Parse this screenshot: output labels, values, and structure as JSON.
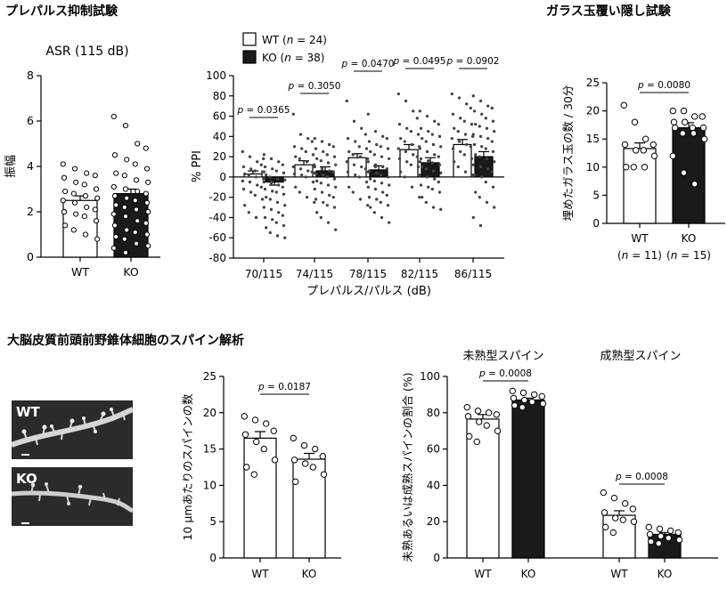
{
  "sections": {
    "prepulse": "プレパルス抑制試験",
    "marble": "ガラス玉覆い隠し試験",
    "spine": "大脳皮質前頭前野錐体細胞のスパイン解析"
  },
  "micrographs": {
    "wt_label": "WT",
    "ko_label": "KO"
  },
  "legend": {
    "wt": {
      "name": "WT",
      "n_prefix": "(",
      "n_var": "n",
      "n_value": " = 24)"
    },
    "ko": {
      "name": "KO",
      "n_prefix": "(",
      "n_var": "n",
      "n_value": " = 38)"
    }
  },
  "colors": {
    "wt_fill": "#ffffff",
    "ko_fill": "#1a1a1a",
    "axis": "#000000",
    "wt_marker": "open-circle",
    "ko_marker": "filled-dot"
  },
  "chart_data": [
    {
      "id": "asr",
      "type": "bar",
      "title": "ASR (115 dB)",
      "ylabel": "振幅",
      "xlabel": "",
      "ylim": [
        0,
        8
      ],
      "yticks": [
        0,
        2,
        4,
        6,
        8
      ],
      "categories": [
        "WT",
        "KO"
      ],
      "values": [
        2.5,
        2.8
      ],
      "sem": [
        0.2,
        0.2
      ],
      "points": [
        [
          4.1,
          3.9,
          3.7,
          3.6,
          3.5,
          3.3,
          3.2,
          3.0,
          2.9,
          2.8,
          2.7,
          2.6,
          2.5,
          2.4,
          2.2,
          2.1,
          2.0,
          1.9,
          1.8,
          1.6,
          1.4,
          1.2,
          1.0,
          0.8
        ],
        [
          6.2,
          5.8,
          5.0,
          4.8,
          4.5,
          4.3,
          4.1,
          3.9,
          3.7,
          3.6,
          3.4,
          3.3,
          3.1,
          3.0,
          2.9,
          2.8,
          2.7,
          2.6,
          2.5,
          2.4,
          2.3,
          2.2,
          2.1,
          2.0,
          1.9,
          1.8,
          1.6,
          1.5,
          1.4,
          1.2,
          1.1,
          1.0,
          0.9,
          0.8,
          0.6,
          0.5,
          0.4,
          0.2
        ]
      ]
    },
    {
      "id": "ppi",
      "type": "bar",
      "title": "",
      "ylabel": "% PPI",
      "xlabel": "プレパルス/パルス (dB)",
      "ylim": [
        -80,
        100
      ],
      "yticks": [
        -80,
        -60,
        -40,
        -20,
        0,
        20,
        40,
        60,
        80,
        100
      ],
      "categories": [
        "70/115",
        "74/115",
        "78/115",
        "82/115",
        "86/115"
      ],
      "series": [
        {
          "name": "WT",
          "values": [
            3,
            12,
            19,
            27,
            32
          ],
          "sem": [
            3,
            4,
            4,
            5,
            5
          ]
        },
        {
          "name": "KO",
          "values": [
            -5,
            6,
            7,
            14,
            20
          ],
          "sem": [
            3,
            4,
            4,
            5,
            5
          ]
        }
      ],
      "p_values": [
        "p = 0.0365",
        "p = 0.3050",
        "p = 0.0470",
        "p = 0.0495",
        "p = 0.0902"
      ],
      "points": [
        {
          "wt": [
            25,
            20,
            15,
            12,
            10,
            8,
            6,
            5,
            3,
            2,
            0,
            -2,
            -4,
            -5,
            -8,
            -10,
            -12,
            -15,
            -18,
            -22,
            -28,
            -35,
            -40,
            18
          ],
          "ko": [
            22,
            18,
            15,
            12,
            10,
            8,
            6,
            4,
            2,
            0,
            -2,
            -3,
            -5,
            -6,
            -8,
            -10,
            -12,
            -14,
            -15,
            -17,
            -20,
            -22,
            -25,
            -28,
            -30,
            -32,
            -35,
            -38,
            -40,
            -42,
            -45,
            -48,
            -50,
            -55,
            -58,
            -60,
            5,
            -5
          ]
        },
        {
          "wt": [
            62,
            42,
            38,
            35,
            30,
            28,
            25,
            22,
            20,
            18,
            15,
            12,
            10,
            8,
            6,
            5,
            3,
            2,
            0,
            -5,
            -10,
            -15,
            -20,
            -25
          ],
          "ko": [
            38,
            35,
            32,
            30,
            28,
            25,
            22,
            20,
            18,
            16,
            14,
            12,
            10,
            8,
            6,
            5,
            3,
            2,
            0,
            -2,
            -4,
            -6,
            -8,
            -10,
            -12,
            -15,
            -18,
            -20,
            -22,
            -25,
            -28,
            -30,
            -35,
            -40,
            -45,
            -52,
            4,
            8
          ]
        },
        {
          "wt": [
            75,
            55,
            48,
            42,
            38,
            35,
            30,
            28,
            25,
            22,
            20,
            18,
            15,
            12,
            10,
            8,
            5,
            2,
            0,
            -5,
            -10,
            -15,
            -22,
            -28
          ],
          "ko": [
            62,
            45,
            40,
            38,
            35,
            32,
            30,
            28,
            25,
            22,
            20,
            18,
            15,
            12,
            10,
            8,
            6,
            4,
            2,
            0,
            -2,
            -4,
            -6,
            -8,
            -10,
            -12,
            -15,
            -18,
            -20,
            -22,
            -25,
            -28,
            -30,
            -35,
            -40,
            -45,
            5,
            10
          ]
        },
        {
          "wt": [
            82,
            75,
            65,
            58,
            52,
            48,
            45,
            42,
            38,
            35,
            32,
            30,
            28,
            25,
            22,
            20,
            18,
            15,
            12,
            10,
            5,
            0,
            -10,
            -20
          ],
          "ko": [
            65,
            60,
            55,
            52,
            48,
            45,
            42,
            40,
            38,
            35,
            32,
            30,
            28,
            25,
            22,
            20,
            18,
            16,
            14,
            12,
            10,
            8,
            6,
            4,
            2,
            0,
            -2,
            -5,
            -8,
            -10,
            -12,
            -15,
            -20,
            -25,
            -30,
            -32,
            15,
            25
          ]
        },
        {
          "wt": [
            82,
            78,
            72,
            68,
            62,
            58,
            55,
            52,
            48,
            45,
            42,
            40,
            38,
            35,
            32,
            30,
            28,
            25,
            22,
            18,
            15,
            10,
            5,
            2
          ],
          "ko": [
            80,
            75,
            70,
            68,
            65,
            62,
            58,
            55,
            52,
            50,
            48,
            45,
            42,
            40,
            38,
            35,
            32,
            30,
            28,
            25,
            22,
            20,
            18,
            15,
            12,
            10,
            8,
            5,
            2,
            0,
            -5,
            -10,
            -15,
            -20,
            -25,
            -30,
            -40,
            -48
          ]
        }
      ]
    },
    {
      "id": "marble",
      "type": "bar",
      "title": "",
      "ylabel": "埋めたガラス玉の数 / 30分",
      "xlabel": "",
      "ylim": [
        0,
        25
      ],
      "yticks": [
        0,
        5,
        10,
        15,
        20,
        25
      ],
      "categories": [
        "WT",
        "KO"
      ],
      "category_sublabels": [
        {
          "pre": "(",
          "var": "n",
          "post": " = 11)"
        },
        {
          "pre": "(",
          "var": "n",
          "post": " = 15)"
        }
      ],
      "values": [
        13.3,
        17.0
      ],
      "sem": [
        1.0,
        0.9
      ],
      "p_value": "p = 0.0080",
      "points": [
        [
          21,
          18,
          15,
          14,
          14,
          13,
          13,
          12,
          10,
          10,
          10
        ],
        [
          20,
          20,
          19,
          19,
          18,
          18,
          17,
          17,
          17,
          16,
          16,
          15,
          12,
          9,
          7
        ]
      ]
    },
    {
      "id": "spine-density",
      "type": "bar",
      "title": "",
      "ylabel": "10 μmあたりのスパインの数",
      "xlabel": "",
      "ylim": [
        0,
        25
      ],
      "yticks": [
        0,
        5,
        10,
        15,
        20,
        25
      ],
      "categories": [
        "WT",
        "KO"
      ],
      "values": [
        16.5,
        13.6
      ],
      "sem": [
        0.9,
        0.8
      ],
      "p_value": "p = 0.0187",
      "points": [
        [
          19.5,
          19.0,
          18.5,
          17.5,
          17.0,
          16.0,
          15.0,
          13.5,
          12.5,
          11.5
        ],
        [
          16.5,
          15.5,
          15.0,
          14.0,
          13.5,
          13.0,
          12.5,
          11.5,
          10.5
        ]
      ]
    },
    {
      "id": "spine-ratio",
      "type": "bar",
      "title": "",
      "ylabel": "未熟あるいは成熟スパインの割合 (%)",
      "xlabel": "",
      "ylim": [
        0,
        100
      ],
      "yticks": [
        0,
        20,
        40,
        60,
        80,
        100
      ],
      "groups": [
        {
          "label": "未熟型スパイン",
          "categories": [
            "WT",
            "KO"
          ],
          "values": [
            76.5,
            87.0
          ],
          "sem": [
            2.5,
            1.0
          ],
          "p_value": "p = 0.0008",
          "points": [
            [
              83,
              81,
              80,
              79,
              78,
              75,
              73,
              70,
              67,
              64
            ],
            [
              92,
              91,
              90,
              89,
              88,
              87,
              86,
              85,
              84,
              83
            ]
          ]
        },
        {
          "label": "成熟型スパイン",
          "categories": [
            "WT",
            "KO"
          ],
          "values": [
            23.5,
            13.0
          ],
          "sem": [
            2.5,
            1.0
          ],
          "p_value": "p = 0.0008",
          "points": [
            [
              36,
              33,
              30,
              27,
              25,
              22,
              21,
              20,
              17,
              14
            ],
            [
              17,
              16,
              15,
              14,
              13,
              12,
              11,
              10,
              9,
              8
            ]
          ]
        }
      ]
    }
  ]
}
